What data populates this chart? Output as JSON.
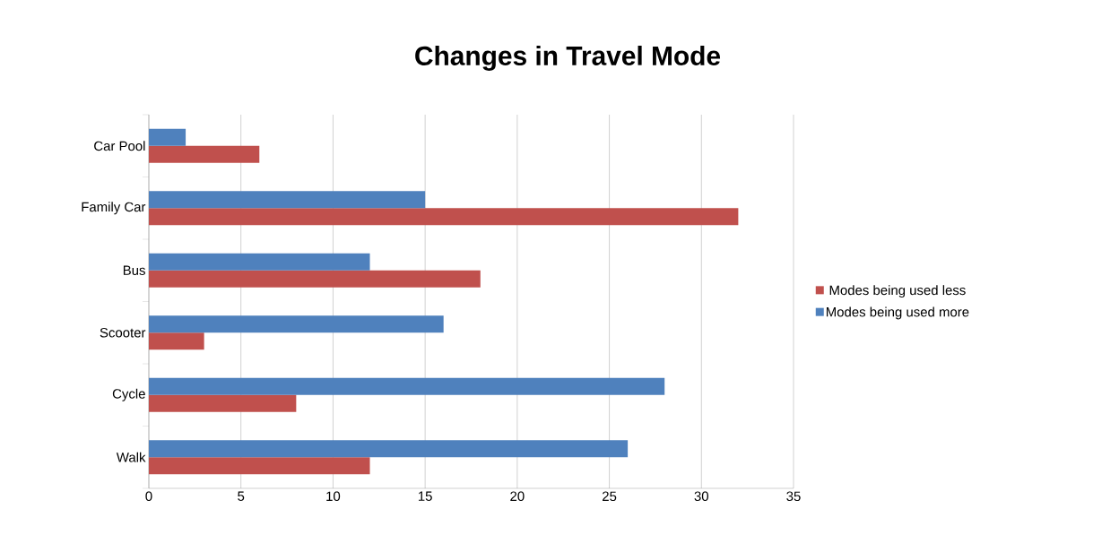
{
  "chart_data": {
    "type": "bar",
    "orientation": "horizontal",
    "title": "Changes in Travel Mode",
    "categories": [
      "Car Pool",
      "Family Car",
      "Bus",
      "Scooter",
      "Cycle",
      "Walk"
    ],
    "series": [
      {
        "name": "Modes  being used less",
        "color": "#c0504d",
        "values": [
          6,
          32,
          18,
          3,
          8,
          12
        ]
      },
      {
        "name": "Modes  being used more",
        "color": "#4f81bd",
        "values": [
          2,
          15,
          12,
          16,
          28,
          26
        ]
      }
    ],
    "xlim": [
      0,
      35
    ],
    "xticks": [
      0,
      5,
      10,
      15,
      20,
      25,
      30,
      35
    ],
    "grid": "x",
    "legend": "right"
  }
}
